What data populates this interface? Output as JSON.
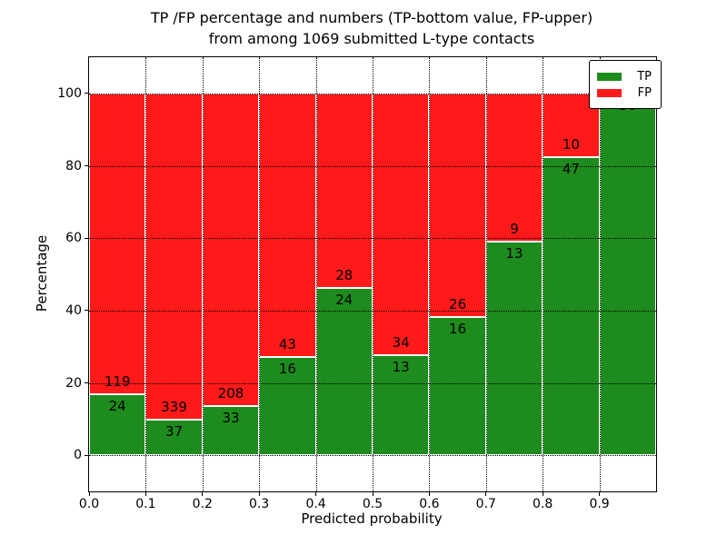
{
  "figure": {
    "title_line1": "TP /FP percentage and numbers (TP-bottom value, FP-upper)",
    "title_line2": "from among 1069 submitted L-type contacts",
    "xlabel": "Predicted probability",
    "ylabel": "Percentage"
  },
  "legend": {
    "position": "upper right",
    "items": [
      {
        "label": "TP",
        "color": "#1e8b1e"
      },
      {
        "label": "FP",
        "color": "#ff1a1a"
      }
    ]
  },
  "chart_data": {
    "type": "bar",
    "stacked": true,
    "normalized_to_percent": true,
    "title": "TP /FP percentage and numbers (TP-bottom value, FP-upper)\nfrom among 1069 submitted L-type contacts",
    "xlabel": "Predicted probability",
    "ylabel": "Percentage",
    "total_contacts": 1069,
    "bin_edges": [
      0.0,
      0.1,
      0.2,
      0.3,
      0.4,
      0.5,
      0.6,
      0.7,
      0.8,
      0.9,
      1.0
    ],
    "series": [
      {
        "name": "TP",
        "color": "#1e8b1e",
        "counts": [
          24,
          37,
          33,
          16,
          24,
          13,
          16,
          13,
          47,
          30
        ]
      },
      {
        "name": "FP",
        "color": "#ff1a1a",
        "counts": [
          119,
          339,
          208,
          43,
          28,
          34,
          26,
          9,
          10,
          0
        ]
      }
    ],
    "tp_percent_of_bin": [
      16.8,
      9.8,
      13.7,
      27.1,
      46.2,
      27.7,
      38.1,
      59.1,
      82.5,
      100.0
    ],
    "xticks": [
      "0.0",
      "0.1",
      "0.2",
      "0.3",
      "0.4",
      "0.5",
      "0.6",
      "0.7",
      "0.8",
      "0.9"
    ],
    "yticks": [
      "0",
      "20",
      "40",
      "60",
      "80",
      "100"
    ],
    "xlim": [
      0.0,
      1.0
    ],
    "ylim": [
      -10,
      110
    ],
    "grid": true,
    "legend_position": "upper right"
  }
}
